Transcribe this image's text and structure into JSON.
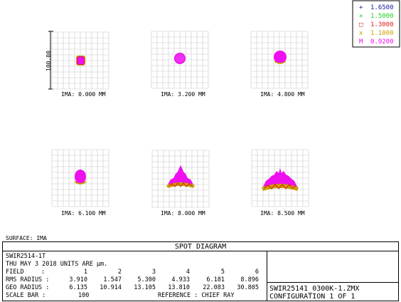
{
  "legend": [
    {
      "symbol": "+",
      "wavelength": "1.6500",
      "color": "#1a1aa0"
    },
    {
      "symbol": "×",
      "wavelength": "1.5000",
      "color": "#1fcf1f"
    },
    {
      "symbol": "□",
      "wavelength": "1.3000",
      "color": "#e01a1a"
    },
    {
      "symbol": "x",
      "wavelength": "1.1000",
      "color": "#c8a000"
    },
    {
      "symbol": "M",
      "wavelength": "0.9200",
      "color": "#ee10ee"
    }
  ],
  "scale_bar_label": "100.00",
  "fields": [
    {
      "label": "IMA: 0.000 MM"
    },
    {
      "label": "IMA: 3.200 MM"
    },
    {
      "label": "IMA: 4.800 MM"
    },
    {
      "label": "IMA: 6.100 MM"
    },
    {
      "label": "IMA: 8.000 MM"
    },
    {
      "label": "IMA: 8.500 MM"
    }
  ],
  "surface_label": "SURFACE: IMA",
  "title": "SPOT DIAGRAM",
  "info": {
    "lens_name": "SWIR2514-1T",
    "date_units": "THU MAY 3 2018  UNITS ARE µm.",
    "field_label": "FIELD",
    "field_values": [
      "1",
      "2",
      "3",
      "4",
      "5",
      "6"
    ],
    "rms_label": "RMS RADIUS :",
    "rms_values": [
      "3.910",
      "1.547",
      "5.300",
      "4.933",
      "6.181",
      "8.896"
    ],
    "geo_label": "GEO RADIUS :",
    "geo_values": [
      "6.135",
      "10.914",
      "13.105",
      "13.810",
      "22.083",
      "30.805"
    ],
    "scale_bar_text": "SCALE BAR  :",
    "scale_bar_value": "100",
    "reference": "REFERENCE  : CHIEF RAY"
  },
  "file_name": "SWIR25141_0300K-1.ZMX",
  "configuration": "CONFIGURATION 1 OF 1"
}
